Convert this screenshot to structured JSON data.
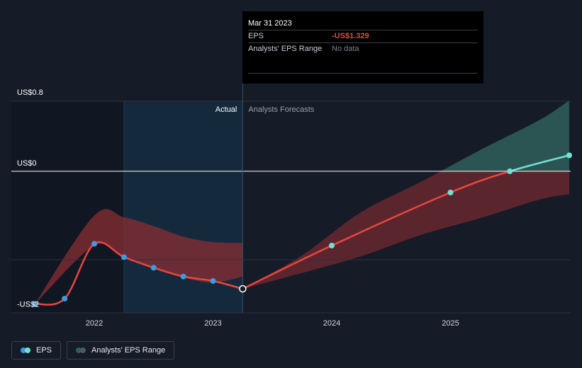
{
  "chart_data": {
    "type": "line",
    "y_ticks": [
      {
        "label": "US$0.8",
        "value": 0.8
      },
      {
        "label": "US$0",
        "value": 0
      },
      {
        "label": "-US$2",
        "value": -1.5
      }
    ],
    "x_ticks": [
      {
        "label": "2022",
        "x": 2022.0
      },
      {
        "label": "2023",
        "x": 2023.0
      },
      {
        "label": "2024",
        "x": 2024.0
      },
      {
        "label": "2025",
        "x": 2025.0
      }
    ],
    "xlim": [
      2021.9,
      2026.0
    ],
    "ylim": [
      -1.6,
      0.8
    ],
    "region_labels": {
      "actual": "Actual",
      "forecast": "Analysts Forecasts"
    },
    "actual_start": 2022.25,
    "divider_x": 2023.25,
    "series": [
      {
        "name": "EPS",
        "points": [
          {
            "x": 2021.5,
            "y": -1.5
          },
          {
            "x": 2021.75,
            "y": -1.44
          },
          {
            "x": 2022.0,
            "y": -0.82
          },
          {
            "x": 2022.25,
            "y": -0.97
          },
          {
            "x": 2022.5,
            "y": -1.09
          },
          {
            "x": 2022.75,
            "y": -1.19
          },
          {
            "x": 2023.0,
            "y": -1.24
          },
          {
            "x": 2023.25,
            "y": -1.329
          }
        ]
      },
      {
        "name": "EPS forecast",
        "points": [
          {
            "x": 2023.25,
            "y": -1.329
          },
          {
            "x": 2024.0,
            "y": -0.84
          },
          {
            "x": 2025.0,
            "y": -0.24
          },
          {
            "x": 2025.5,
            "y": 0.0
          },
          {
            "x": 2026.0,
            "y": 0.18
          }
        ]
      }
    ],
    "range_actual": {
      "x": [
        2021.5,
        2022.0,
        2022.25,
        2022.5,
        2022.75,
        2023.0,
        2023.25
      ],
      "high": [
        -1.5,
        -0.5,
        -0.52,
        -0.62,
        -0.74,
        -0.8,
        -0.81
      ],
      "low": [
        -1.5,
        -0.84,
        -0.98,
        -1.1,
        -1.2,
        -1.26,
        -1.19
      ]
    },
    "range_forecast": {
      "x": [
        2023.25,
        2023.75,
        2024.25,
        2024.75,
        2025.25,
        2025.75,
        2026.0
      ],
      "high": [
        -1.329,
        -0.95,
        -0.46,
        -0.12,
        0.24,
        0.58,
        0.8
      ],
      "low": [
        -1.329,
        -1.15,
        -0.96,
        -0.72,
        -0.53,
        -0.32,
        -0.26
      ]
    },
    "colors": {
      "eps_line": "#e8473f",
      "eps_dot": "#3a9be2",
      "eps_forecast_dot": "#73e0d6",
      "range_negative": "#8a2d33",
      "range_positive": "#2f5f5c"
    }
  },
  "tooltip": {
    "date": "Mar 31 2023",
    "eps_label": "EPS",
    "eps_value": "-US$1.329",
    "range_label": "Analysts' EPS Range",
    "range_value": "No data"
  },
  "legend": {
    "eps_label": "EPS",
    "range_label": "Analysts' EPS Range",
    "eps_colors": [
      "#3a9be2",
      "#73e0d6"
    ],
    "range_colors": [
      "#2f5f5c",
      "#4a5a66"
    ]
  }
}
